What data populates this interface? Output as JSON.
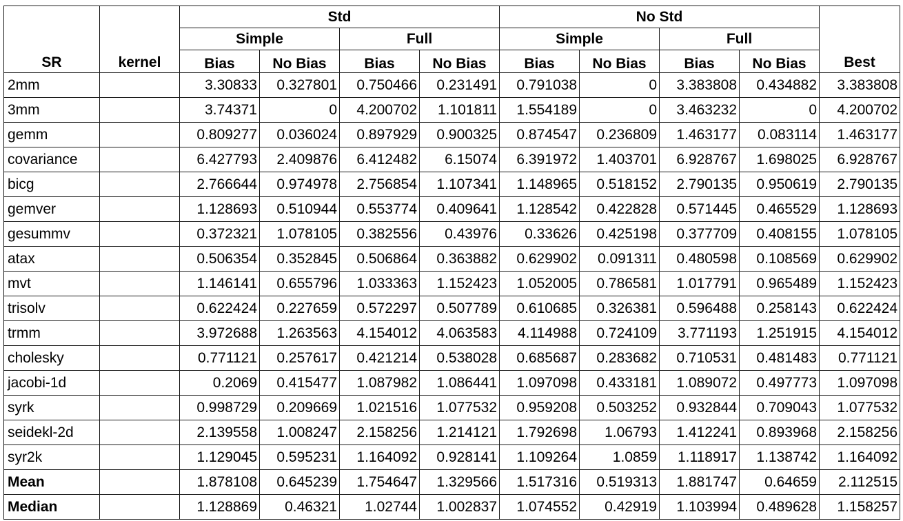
{
  "headers": {
    "sr": "SR",
    "kernel": "kernel",
    "best": "Best",
    "groups": [
      {
        "label": "Std",
        "sub": [
          {
            "label": "Simple"
          },
          {
            "label": "Full"
          }
        ]
      },
      {
        "label": "No Std",
        "sub": [
          {
            "label": "Simple"
          },
          {
            "label": "Full"
          }
        ]
      }
    ],
    "leaf": [
      "Bias",
      "No Bias",
      "Bias",
      "No Bias",
      "Bias",
      "No Bias",
      "Bias",
      "No Bias"
    ]
  },
  "rows": [
    {
      "sr": "2mm",
      "kernel": "",
      "values": [
        "3.30833",
        "0.327801",
        "0.750466",
        "0.231491",
        "0.791038",
        "0",
        "3.383808",
        "0.434882"
      ],
      "best": "3.383808",
      "bold": false
    },
    {
      "sr": "3mm",
      "kernel": "",
      "values": [
        "3.74371",
        "0",
        "4.200702",
        "1.101811",
        "1.554189",
        "0",
        "3.463232",
        "0"
      ],
      "best": "4.200702",
      "bold": false
    },
    {
      "sr": "gemm",
      "kernel": "",
      "values": [
        "0.809277",
        "0.036024",
        "0.897929",
        "0.900325",
        "0.874547",
        "0.236809",
        "1.463177",
        "0.083114"
      ],
      "best": "1.463177",
      "bold": false
    },
    {
      "sr": "covariance",
      "kernel": "",
      "values": [
        "6.427793",
        "2.409876",
        "6.412482",
        "6.15074",
        "6.391972",
        "1.403701",
        "6.928767",
        "1.698025"
      ],
      "best": "6.928767",
      "bold": false
    },
    {
      "sr": "bicg",
      "kernel": "",
      "values": [
        "2.766644",
        "0.974978",
        "2.756854",
        "1.107341",
        "1.148965",
        "0.518152",
        "2.790135",
        "0.950619"
      ],
      "best": "2.790135",
      "bold": false
    },
    {
      "sr": "gemver",
      "kernel": "",
      "values": [
        "1.128693",
        "0.510944",
        "0.553774",
        "0.409641",
        "1.128542",
        "0.422828",
        "0.571445",
        "0.465529"
      ],
      "best": "1.128693",
      "bold": false
    },
    {
      "sr": "gesummv",
      "kernel": "",
      "values": [
        "0.372321",
        "1.078105",
        "0.382556",
        "0.43976",
        "0.33626",
        "0.425198",
        "0.377709",
        "0.408155"
      ],
      "best": "1.078105",
      "bold": false
    },
    {
      "sr": "atax",
      "kernel": "",
      "values": [
        "0.506354",
        "0.352845",
        "0.506864",
        "0.363882",
        "0.629902",
        "0.091311",
        "0.480598",
        "0.108569"
      ],
      "best": "0.629902",
      "bold": false
    },
    {
      "sr": "mvt",
      "kernel": "",
      "values": [
        "1.146141",
        "0.655796",
        "1.033363",
        "1.152423",
        "1.052005",
        "0.786581",
        "1.017791",
        "0.965489"
      ],
      "best": "1.152423",
      "bold": false
    },
    {
      "sr": "trisolv",
      "kernel": "",
      "values": [
        "0.622424",
        "0.227659",
        "0.572297",
        "0.507789",
        "0.610685",
        "0.326381",
        "0.596488",
        "0.258143"
      ],
      "best": "0.622424",
      "bold": false
    },
    {
      "sr": "trmm",
      "kernel": "",
      "values": [
        "3.972688",
        "1.263563",
        "4.154012",
        "4.063583",
        "4.114988",
        "0.724109",
        "3.771193",
        "1.251915"
      ],
      "best": "4.154012",
      "bold": false
    },
    {
      "sr": "cholesky",
      "kernel": "",
      "values": [
        "0.771121",
        "0.257617",
        "0.421214",
        "0.538028",
        "0.685687",
        "0.283682",
        "0.710531",
        "0.481483"
      ],
      "best": "0.771121",
      "bold": false
    },
    {
      "sr": "jacobi-1d",
      "kernel": "",
      "values": [
        "0.2069",
        "0.415477",
        "1.087982",
        "1.086441",
        "1.097098",
        "0.433181",
        "1.089072",
        "0.497773"
      ],
      "best": "1.097098",
      "bold": false
    },
    {
      "sr": "syrk",
      "kernel": "",
      "values": [
        "0.998729",
        "0.209669",
        "1.021516",
        "1.077532",
        "0.959208",
        "0.503252",
        "0.932844",
        "0.709043"
      ],
      "best": "1.077532",
      "bold": false
    },
    {
      "sr": "seidekl-2d",
      "kernel": "",
      "values": [
        "2.139558",
        "1.008247",
        "2.158256",
        "1.214121",
        "1.792698",
        "1.06793",
        "1.412241",
        "0.893968"
      ],
      "best": "2.158256",
      "bold": false
    },
    {
      "sr": "syr2k",
      "kernel": "",
      "values": [
        "1.129045",
        "0.595231",
        "1.164092",
        "0.928141",
        "1.109264",
        "1.0859",
        "1.118917",
        "1.138742"
      ],
      "best": "1.164092",
      "bold": false
    },
    {
      "sr": "Mean",
      "kernel": "",
      "values": [
        "1.878108",
        "0.645239",
        "1.754647",
        "1.329566",
        "1.517316",
        "0.519313",
        "1.881747",
        "0.64659"
      ],
      "best": "2.112515",
      "bold": true
    },
    {
      "sr": "Median",
      "kernel": "",
      "values": [
        "1.128869",
        "0.46321",
        "1.02744",
        "1.002837",
        "1.074552",
        "0.42919",
        "1.103994",
        "0.489628"
      ],
      "best": "1.158257",
      "bold": true
    }
  ]
}
